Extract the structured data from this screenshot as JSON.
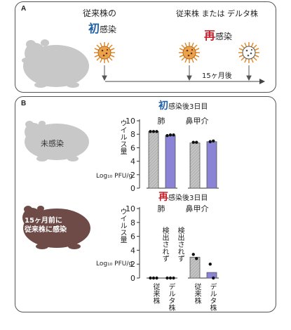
{
  "panel_a": {
    "label": "A",
    "first_infection": {
      "prefix": "従来株の",
      "emph": "初",
      "suffix": "感染"
    },
    "reinfection_strains": "従来株 または デルタ株",
    "reinfection": {
      "emph": "再",
      "suffix": "感染"
    },
    "timeline_label": "15ヶ月後"
  },
  "panel_b": {
    "label": "B",
    "uninfected_label": "未感染",
    "prior_infected_label": [
      "15ヶ月前に",
      "従来株に感染"
    ],
    "y_axis_label_vertical": "ウイルス量",
    "y_axis_label_unit": "Log₁₀ PFU/g",
    "not_detected_label": "検出されず",
    "x_tick_labels": [
      "従来株",
      "デルタ株",
      "従来株",
      "デルタ株"
    ]
  },
  "colors": {
    "conventional": "#bdbdbd",
    "delta": "#8a83d6",
    "blue_accent": "#1f5fa8",
    "red_accent": "#cc1d2a",
    "hamster_gray": "#c8c8c8",
    "hamster_brown": "#6e4b47"
  },
  "chart_data": [
    {
      "type": "bar",
      "title": "初感染後3日目",
      "ylabel": "ウイルス量 Log₁₀ PFU/g",
      "ylim": [
        0,
        10
      ],
      "yticks": [
        0,
        2,
        4,
        6,
        8,
        10
      ],
      "groups": [
        {
          "name": "肺",
          "categories": [
            "従来株",
            "デルタ株"
          ],
          "values": [
            8.4,
            7.8
          ],
          "points": [
            [
              8.4,
              8.4,
              8.4
            ],
            [
              7.8,
              7.9,
              7.9
            ]
          ]
        },
        {
          "name": "鼻甲介",
          "categories": [
            "従来株",
            "デルタ株"
          ],
          "values": [
            6.7,
            6.9
          ],
          "points": [
            [
              6.8,
              6.8
            ],
            [
              6.9,
              7.0
            ]
          ]
        }
      ]
    },
    {
      "type": "bar",
      "title": "再感染後3日目",
      "ylabel": "ウイルス量 Log₁₀ PFU/g",
      "ylim": [
        0,
        10
      ],
      "yticks": [
        0,
        2,
        4,
        6,
        8,
        10
      ],
      "groups": [
        {
          "name": "肺",
          "categories": [
            "従来株",
            "デルタ株"
          ],
          "values": [
            0,
            0
          ],
          "annotations": [
            "検出されず",
            "検出されず"
          ],
          "points": [
            [
              0,
              0,
              0
            ],
            [
              0,
              0,
              0
            ]
          ]
        },
        {
          "name": "鼻甲介",
          "categories": [
            "従来株",
            "デルタ株"
          ],
          "values": [
            3.0,
            0.8
          ],
          "points": [
            [
              3.4,
              2.8
            ],
            [
              2.0,
              0
            ]
          ]
        }
      ]
    }
  ]
}
